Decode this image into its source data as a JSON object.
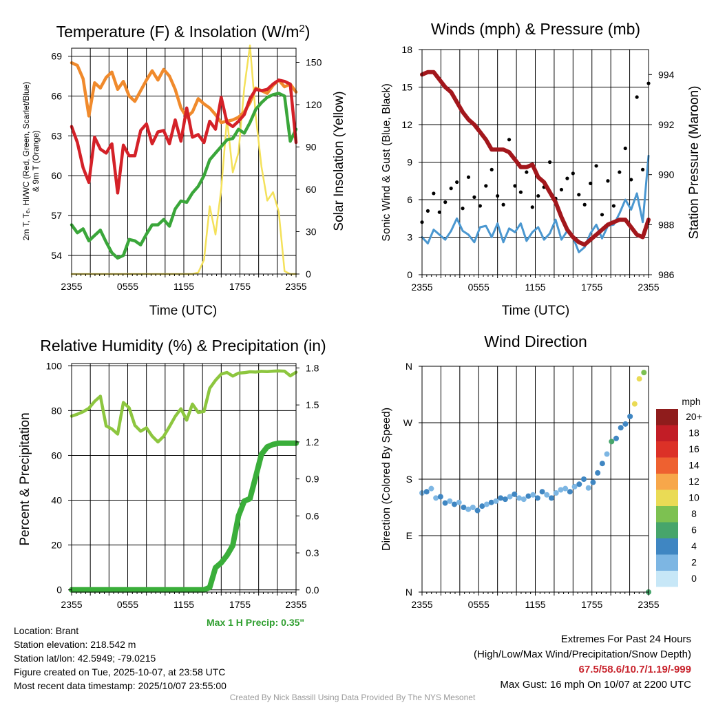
{
  "colors": {
    "temp": "#d42128",
    "dewpoint": "#3aa63a",
    "heat_index": "#d42128",
    "temp9m": "#f08a2c",
    "insolation": "#f4e15a",
    "wind": "#4a97d0",
    "gust": "#000000",
    "pressure": "#a3171c",
    "rh": "#8dc63f",
    "precip": "#3aae3a",
    "max_precip": "#2e9e2e",
    "extremes": "#c8232c"
  },
  "chart_data": [
    {
      "id": "temperature",
      "type": "line",
      "title": "Temperature (F) & Insolation (W/m²)",
      "xlabel": "Time (UTC)",
      "ylabel_lines": [
        "2m T, Tₑ, HI/WC (Red, Green, Scarlet/Blue)",
        "& 9m T (Orange)"
      ],
      "y2label": "Solar Insolation (Yellow)",
      "x_ticks": [
        "2355",
        "0555",
        "1155",
        "1755",
        "2355"
      ],
      "ylim": [
        52.6,
        69.6
      ],
      "yticks": [
        54,
        57,
        60,
        63,
        66,
        69
      ],
      "y2lim": [
        0,
        160
      ],
      "y2ticks": [
        0,
        30,
        60,
        90,
        120,
        150
      ],
      "series": [
        {
          "name": "9m Temperature",
          "color_key": "temp9m",
          "values": [
            68.5,
            68.3,
            67.3,
            64.5,
            67.0,
            66.6,
            67.4,
            67.8,
            66.5,
            67.1,
            66.0,
            65.6,
            66.4,
            67.2,
            67.9,
            67.2,
            68.0,
            67.5,
            66.5,
            65.1,
            64.4,
            64.8,
            65.8,
            65.4,
            65.1,
            64.6,
            64.0,
            64.1,
            64.2,
            64.4,
            64.8,
            65.5,
            66.6,
            66.4,
            66.2,
            66.8,
            67.2,
            66.7,
            66.9,
            66.3
          ]
        },
        {
          "name": "2m Temperature",
          "color_key": "temp",
          "values": [
            63.7,
            62.5,
            60.6,
            59.5,
            62.9,
            62.0,
            61.7,
            62.4,
            58.7,
            62.3,
            61.5,
            61.5,
            63.4,
            63.9,
            62.4,
            63.3,
            63.4,
            62.4,
            64.2,
            62.6,
            65.1,
            62.9,
            63.1,
            62.5,
            64.1,
            63.5,
            65.9,
            64.0,
            63.7,
            64.1,
            64.6,
            65.8,
            66.5,
            66.4,
            66.5,
            66.9,
            67.2,
            67.1,
            66.9,
            62.5
          ]
        },
        {
          "name": "Dewpoint",
          "color_key": "dewpoint",
          "values": [
            56.3,
            55.7,
            56.0,
            55.1,
            55.5,
            55.9,
            55.0,
            54.2,
            53.8,
            54.0,
            55.2,
            55.1,
            54.8,
            55.6,
            56.3,
            56.3,
            56.7,
            56.2,
            57.5,
            58.1,
            58.0,
            58.7,
            59.2,
            60.0,
            61.2,
            61.7,
            62.2,
            62.7,
            62.8,
            63.5,
            63.2,
            64.0,
            65.0,
            65.5,
            65.9,
            66.1,
            66.2,
            66.0,
            62.6,
            63.5
          ]
        },
        {
          "name": "Solar Insolation",
          "color_key": "insolation",
          "axis": "y2",
          "values": [
            0,
            0,
            0,
            0,
            0,
            0,
            0,
            0,
            0,
            0,
            0,
            0,
            0,
            0,
            0,
            0,
            0,
            0,
            0,
            0,
            0,
            0,
            1,
            10,
            48,
            28,
            60,
            110,
            72,
            86,
            132,
            162,
            112,
            76,
            52,
            58,
            44,
            2,
            0,
            0
          ]
        }
      ]
    },
    {
      "id": "winds",
      "type": "line",
      "title": "Winds (mph) & Pressure (mb)",
      "xlabel": "Time (UTC)",
      "ylabel": "Sonic Wind & Gust (Blue, Black)",
      "y2label": "Station Pressure (Maroon)",
      "x_ticks": [
        "2355",
        "0555",
        "1155",
        "1755",
        "2355"
      ],
      "ylim": [
        0,
        18
      ],
      "yticks": [
        0,
        3,
        6,
        9,
        12,
        15,
        18
      ],
      "y2lim": [
        986,
        995
      ],
      "y2ticks": [
        986,
        988,
        990,
        992,
        994
      ],
      "series": [
        {
          "name": "Sonic Wind",
          "color_key": "wind",
          "values": [
            3.0,
            2.5,
            3.6,
            3.2,
            2.8,
            3.5,
            4.5,
            3.5,
            3.2,
            2.6,
            3.8,
            3.9,
            3.0,
            4.1,
            2.6,
            3.7,
            3.4,
            4.1,
            2.7,
            3.4,
            3.8,
            2.8,
            3.3,
            4.4,
            2.8,
            3.5,
            3.0,
            1.8,
            2.2,
            3.3,
            4.0,
            2.9,
            3.9,
            4.0,
            4.9,
            6.0,
            5.2,
            6.5,
            4.2,
            9.5
          ]
        },
        {
          "name": "Gust",
          "color_key": "gust",
          "style": "dots",
          "values": [
            4.2,
            5.1,
            6.5,
            5.0,
            5.8,
            6.9,
            7.4,
            5.3,
            7.8,
            6.2,
            5.5,
            7.1,
            8.4,
            6.3,
            5.6,
            10.8,
            7.1,
            6.6,
            8.2,
            5.4,
            6.3,
            7.0,
            9.0,
            6.1,
            6.8,
            7.7,
            8.1,
            6.4,
            5.6,
            7.3,
            8.7,
            4.8,
            7.5,
            5.5,
            8.2,
            10.1,
            7.6,
            14.2,
            8.4,
            15.3
          ]
        },
        {
          "name": "Station Pressure",
          "color_key": "pressure",
          "axis": "y2",
          "values": [
            994.0,
            994.1,
            994.1,
            993.8,
            993.5,
            993.3,
            992.9,
            992.5,
            992.2,
            992.0,
            991.7,
            991.4,
            991.0,
            991.0,
            991.0,
            990.9,
            990.6,
            990.3,
            990.3,
            990.4,
            989.9,
            989.7,
            989.3,
            988.9,
            988.3,
            987.8,
            987.5,
            987.3,
            987.2,
            987.4,
            987.6,
            987.8,
            988.0,
            988.1,
            988.2,
            988.2,
            987.9,
            987.6,
            987.5,
            988.2
          ]
        }
      ]
    },
    {
      "id": "humidity",
      "type": "line",
      "title": "Relative Humidity (%) & Precipitation (in)",
      "xlabel": "",
      "ylabel": "Percent & Precipitation",
      "x_ticks": [
        "2355",
        "0555",
        "1155",
        "1755",
        "2355"
      ],
      "ylim": [
        -1,
        101
      ],
      "yticks": [
        0,
        20,
        40,
        60,
        80,
        100
      ],
      "y2lim": [
        -0.018,
        1.836
      ],
      "y2ticks": [
        "0.0",
        "0.3",
        "0.6",
        "0.9",
        "1.2",
        "1.5",
        "1.8"
      ],
      "series": [
        {
          "name": "Relative Humidity",
          "color_key": "rh",
          "values": [
            77.5,
            78.4,
            79.5,
            81.0,
            84.1,
            86.4,
            73.1,
            71.8,
            69.5,
            83.6,
            81.2,
            73.4,
            70.8,
            72.3,
            68.6,
            66.0,
            68.5,
            72.8,
            77.4,
            80.8,
            75.7,
            82.9,
            79.2,
            79.6,
            89.9,
            93.5,
            96.3,
            97.0,
            95.4,
            96.7,
            96.9,
            97.3,
            97.2,
            97.5,
            97.4,
            97.6,
            97.7,
            97.6,
            95.5,
            97.1
          ]
        },
        {
          "name": "Precipitation",
          "color_key": "precip",
          "axis": "y2",
          "values": [
            0,
            0,
            0,
            0,
            0,
            0,
            0,
            0,
            0,
            0,
            0,
            0,
            0,
            0,
            0,
            0,
            0,
            0,
            0,
            0,
            0,
            0,
            0,
            0,
            0.02,
            0.18,
            0.22,
            0.28,
            0.36,
            0.6,
            0.72,
            0.74,
            0.92,
            1.1,
            1.16,
            1.18,
            1.19,
            1.19,
            1.19,
            1.19
          ]
        }
      ],
      "annotation": "Max 1 H Precip: 0.35\""
    },
    {
      "id": "direction",
      "type": "scatter",
      "title": "Wind Direction",
      "ylabel": "Direction (Colored By Speed)",
      "x_ticks": [
        "2355",
        "0555",
        "1155",
        "1755",
        "2355"
      ],
      "ytick_labels": [
        "N",
        "E",
        "S",
        "W",
        "N"
      ],
      "ylim": [
        0,
        360
      ],
      "legend_title": "mph",
      "legend_labels": [
        "20+",
        "18",
        "16",
        "14",
        "12",
        "10",
        "8",
        "6",
        "4",
        "2",
        "0"
      ],
      "legend_colors": [
        "#8f1c1c",
        "#c21d26",
        "#dc3127",
        "#ee6130",
        "#f7a74a",
        "#eadb55",
        "#7dc151",
        "#47a56b",
        "#3f86c2",
        "#7db6e3",
        "#c7e7f7"
      ],
      "points_deg": [
        158,
        160,
        165,
        150,
        152,
        142,
        145,
        140,
        143,
        135,
        132,
        135,
        130,
        137,
        140,
        143,
        145,
        150,
        148,
        152,
        156,
        150,
        148,
        153,
        155,
        150,
        160,
        155,
        150,
        158,
        163,
        165,
        160,
        168,
        172,
        180,
        166,
        175,
        190,
        205,
        220,
        240,
        245,
        262,
        268,
        280,
        300,
        340,
        350,
        0
      ],
      "points_speed": [
        2,
        3,
        1,
        2,
        3,
        4,
        2,
        3,
        2,
        3,
        1,
        2,
        4,
        3,
        2,
        3,
        2,
        4,
        3,
        2,
        3,
        1,
        2,
        3,
        2,
        4,
        3,
        2,
        3,
        2,
        1,
        2,
        3,
        2,
        4,
        3,
        2,
        4,
        3,
        4,
        2,
        5,
        4,
        3,
        4,
        4,
        9,
        10,
        8,
        6
      ]
    }
  ],
  "info": {
    "location": "Location: Brant",
    "elevation": "Station elevation: 218.542 m",
    "latlon": "Station lat/lon: 42.5949; -79.0215",
    "created": "Figure created on Tue, 2025-10-07, at 23:58 UTC",
    "recent": "Most recent data timestamp: 2025/10/07 23:55:00",
    "extremes_title": "Extremes For Past 24 Hours",
    "extremes_subtitle": "(High/Low/Max Wind/Precipitation/Snow Depth)",
    "extremes_values": "67.5/58.6/10.7/1.19/-999",
    "max_gust": "Max Gust: 16 mph On 10/07 at 2200 UTC",
    "credit": "Created By Nick Bassill Using Data Provided By The NYS Mesonet"
  }
}
